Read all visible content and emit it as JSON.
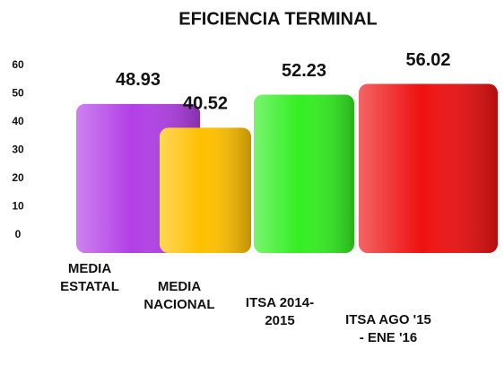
{
  "chart_data": {
    "type": "bar",
    "title": "EFICIENCIA TERMINAL",
    "categories": [
      "MEDIA ESTATAL",
      "MEDIA NACIONAL",
      "ITSA 2014-2015",
      "ITSA AGO '15 - ENE '16"
    ],
    "values": [
      48.93,
      40.52,
      52.23,
      56.02
    ],
    "colors": [
      "#b23fe6",
      "#ffc000",
      "#33ee22",
      "#ee1111"
    ],
    "ylim": [
      0,
      60
    ],
    "yticks": [
      0,
      10,
      20,
      30,
      40,
      50,
      60
    ],
    "grid": false
  }
}
